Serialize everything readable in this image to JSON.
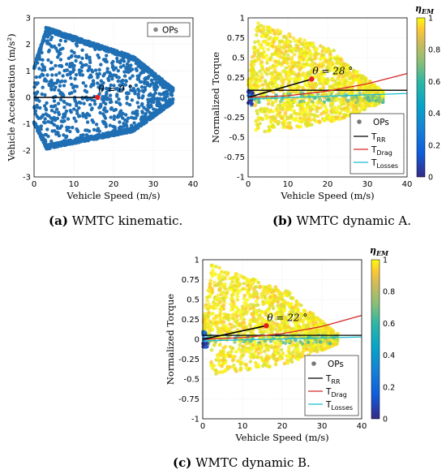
{
  "captions": {
    "a_tag": "(a)",
    "a_text": "WMTC kinematic.",
    "b_tag": "(b)",
    "b_text": "WMTC dynamic A.",
    "c_tag": "(c)",
    "c_text": "WMTC dynamic B."
  },
  "chart_data": [
    {
      "id": "a",
      "type": "scatter",
      "xlabel": "Vehicle Speed (m/s)",
      "ylabel": "Vehicle Acceleration (m/s²)",
      "xlim": [
        0,
        40
      ],
      "ylim": [
        -3,
        3
      ],
      "xticks": [
        "0",
        "10",
        "20",
        "30",
        "40"
      ],
      "yticks": [
        "-3",
        "-2",
        "-1",
        "0",
        "1",
        "2",
        "3"
      ],
      "grid": true,
      "legend": [
        "OPs"
      ],
      "legend_position": "top-right",
      "annotation": "θ = 0 °",
      "operating_point": {
        "x": 16,
        "y": 0
      },
      "series": [
        {
          "name": "OPs",
          "color": "#1f6fb4",
          "cloud": "speed-acceleration envelope 0–35 m/s, -2 to 2.7 m/s²"
        }
      ]
    },
    {
      "id": "b",
      "type": "scatter",
      "xlabel": "Vehicle Speed (m/s)",
      "ylabel": "Normalized Torque",
      "xlim": [
        0,
        40
      ],
      "ylim": [
        -1,
        1
      ],
      "xticks": [
        "0",
        "10",
        "20",
        "30",
        "40"
      ],
      "yticks": [
        "-1",
        "-0.75",
        "-0.5",
        "-0.25",
        "0",
        "0.25",
        "0.5",
        "0.75",
        "1"
      ],
      "grid": true,
      "legend": [
        "OPs",
        "T_RR",
        "T_Drag",
        "T_Losses"
      ],
      "legend_position": "bottom-right",
      "annotation": "θ = 28 °",
      "operating_point": {
        "x": 16,
        "y": 0.23
      },
      "colorbar": {
        "label": "η_EM",
        "ticks": [
          "0",
          "0.2",
          "0.4",
          "0.6",
          "0.8",
          "1"
        ]
      },
      "lines": [
        {
          "name": "T_RR",
          "color": "#000000",
          "x": [
            0,
            40
          ],
          "y": [
            0.09,
            0.09
          ]
        },
        {
          "name": "T_Drag",
          "color": "#d62728",
          "x": [
            0,
            10,
            20,
            30,
            40
          ],
          "y": [
            0,
            0.02,
            0.08,
            0.17,
            0.3
          ]
        },
        {
          "name": "T_Losses",
          "color": "#17becf",
          "x": [
            0,
            40
          ],
          "y": [
            -0.02,
            0.05
          ]
        }
      ]
    },
    {
      "id": "c",
      "type": "scatter",
      "xlabel": "Vehicle Speed (m/s)",
      "ylabel": "Normalized Torque",
      "xlim": [
        0,
        40
      ],
      "ylim": [
        -1,
        1
      ],
      "xticks": [
        "0",
        "10",
        "20",
        "30",
        "40"
      ],
      "yticks": [
        "-1",
        "-0.75",
        "-0.5",
        "-0.25",
        "0",
        "0.25",
        "0.5",
        "0.75",
        "1"
      ],
      "grid": true,
      "legend": [
        "OPs",
        "T_RR",
        "T_Drag",
        "T_Losses"
      ],
      "legend_position": "bottom-right",
      "annotation": "θ = 22 °",
      "operating_point": {
        "x": 16,
        "y": 0.17
      },
      "colorbar": {
        "label": "η_EM",
        "ticks": [
          "0",
          "0.2",
          "0.4",
          "0.6",
          "0.8",
          "1"
        ]
      },
      "lines": [
        {
          "name": "T_RR",
          "color": "#000000",
          "x": [
            0,
            40
          ],
          "y": [
            0.05,
            0.05
          ]
        },
        {
          "name": "T_Drag",
          "color": "#d62728",
          "x": [
            0,
            10,
            20,
            30,
            40
          ],
          "y": [
            0,
            0.02,
            0.07,
            0.16,
            0.3
          ]
        },
        {
          "name": "T_Losses",
          "color": "#17becf",
          "x": [
            0,
            40
          ],
          "y": [
            -0.02,
            0.03
          ]
        }
      ]
    }
  ]
}
